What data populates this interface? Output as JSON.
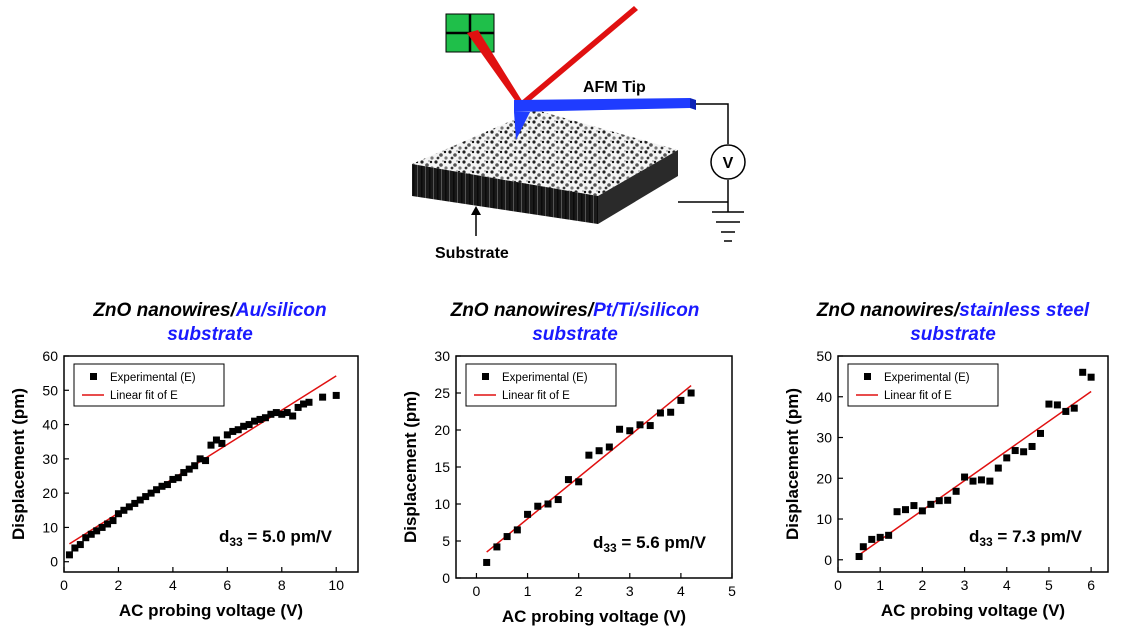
{
  "schematic": {
    "tip_label": "AFM Tip",
    "substrate_label": "Substrate",
    "meter_label": "V"
  },
  "panels": [
    {
      "title_black": "ZnO nanowires/",
      "title_blue_1": "Au/silicon",
      "title_blue_2": "substrate"
    },
    {
      "title_black": "ZnO nanowires/",
      "title_blue_1": "Pt/Ti/silicon",
      "title_blue_2": "substrate"
    },
    {
      "title_black": "ZnO nanowires/",
      "title_blue_1": "stainless steel",
      "title_blue_2": "substrate"
    }
  ],
  "colors": {
    "title_blue": "#1a1aff",
    "fit_line": "#e01010",
    "marker": "#000000",
    "tip": "#1f3cff",
    "laser": "#e01010",
    "detector": "#1fbf4a"
  },
  "chart_data": [
    {
      "type": "scatter",
      "xlabel": "AC probing voltage (V)",
      "ylabel": "Displacement (pm)",
      "xlim": [
        0,
        10.8
      ],
      "ylim": [
        -3,
        60
      ],
      "xticks": [
        "0",
        "2",
        "4",
        "6",
        "8",
        "10"
      ],
      "xtick_values": [
        0,
        2,
        4,
        6,
        8,
        10
      ],
      "yticks": [
        "0",
        "10",
        "20",
        "30",
        "40",
        "50",
        "60"
      ],
      "ytick_values": [
        0,
        10,
        20,
        30,
        40,
        50,
        60
      ],
      "legend": {
        "position": "top-left",
        "marker_label": "Experimental (E)",
        "line_label": "Linear fit of E"
      },
      "annotation": {
        "prefix": "d",
        "sub": "33",
        "suffix": " = 5.0 pm/V"
      },
      "series": [
        {
          "name": "Experimental (E)",
          "kind": "scatter",
          "x": [
            0.2,
            0.4,
            0.6,
            0.8,
            1.0,
            1.2,
            1.4,
            1.6,
            1.8,
            2.0,
            2.2,
            2.4,
            2.6,
            2.8,
            3.0,
            3.2,
            3.4,
            3.6,
            3.8,
            4.0,
            4.2,
            4.4,
            4.6,
            4.8,
            5.0,
            5.2,
            5.4,
            5.6,
            5.8,
            6.0,
            6.2,
            6.4,
            6.6,
            6.8,
            7.0,
            7.2,
            7.4,
            7.6,
            7.8,
            8.0,
            8.2,
            8.4,
            8.6,
            8.8,
            9.0,
            9.5,
            10.0
          ],
          "y": [
            2,
            4,
            5,
            7,
            8,
            9,
            10,
            11,
            12,
            14,
            15,
            16,
            17,
            18,
            19,
            20,
            21,
            22,
            22.5,
            24,
            24.5,
            26,
            27,
            28,
            30,
            29.5,
            34,
            35.5,
            34.5,
            37,
            38,
            38.5,
            39.5,
            40,
            41,
            41.5,
            42,
            43,
            43.5,
            43,
            43.5,
            42.5,
            45,
            46,
            46.5,
            48,
            48.5
          ]
        },
        {
          "name": "Linear fit of E",
          "kind": "line",
          "x": [
            0.2,
            10.0
          ],
          "y": [
            5.2,
            54.2
          ]
        }
      ]
    },
    {
      "type": "scatter",
      "xlabel": "AC probing voltage (V)",
      "ylabel": "Displacement (pm)",
      "xlim": [
        -0.4,
        5
      ],
      "ylim": [
        0,
        30
      ],
      "xticks": [
        "0",
        "1",
        "2",
        "3",
        "4",
        "5"
      ],
      "xtick_values": [
        0,
        1,
        2,
        3,
        4,
        5
      ],
      "yticks": [
        "0",
        "5",
        "10",
        "15",
        "20",
        "25",
        "30"
      ],
      "ytick_values": [
        0,
        5,
        10,
        15,
        20,
        25,
        30
      ],
      "legend": {
        "position": "top-left",
        "marker_label": "Experimental (E)",
        "line_label": "Linear fit of E"
      },
      "annotation": {
        "prefix": "d",
        "sub": "33",
        "suffix": " = 5.6 pm/V"
      },
      "series": [
        {
          "name": "Experimental (E)",
          "kind": "scatter",
          "x": [
            0.2,
            0.4,
            0.6,
            0.8,
            1.0,
            1.2,
            1.4,
            1.6,
            1.8,
            2.0,
            2.2,
            2.4,
            2.6,
            2.8,
            3.0,
            3.2,
            3.4,
            3.6,
            3.8,
            4.0,
            4.2
          ],
          "y": [
            2.1,
            4.2,
            5.6,
            6.5,
            8.6,
            9.7,
            10.0,
            10.6,
            13.3,
            13.0,
            16.6,
            17.2,
            17.7,
            20.1,
            19.9,
            20.7,
            20.6,
            22.3,
            22.4,
            24.0,
            25.0
          ]
        },
        {
          "name": "Linear fit of E",
          "kind": "line",
          "x": [
            0.2,
            4.2
          ],
          "y": [
            3.5,
            26.0
          ]
        }
      ]
    },
    {
      "type": "scatter",
      "xlabel": "AC probing voltage (V)",
      "ylabel": "Displacement (pm)",
      "xlim": [
        0,
        6.4
      ],
      "ylim": [
        -3,
        50
      ],
      "xticks": [
        "0",
        "1",
        "2",
        "3",
        "4",
        "5",
        "6"
      ],
      "xtick_values": [
        0,
        1,
        2,
        3,
        4,
        5,
        6
      ],
      "yticks": [
        "0",
        "10",
        "20",
        "30",
        "40",
        "50"
      ],
      "ytick_values": [
        0,
        10,
        20,
        30,
        40,
        50
      ],
      "legend": {
        "position": "top-left",
        "marker_label": "Experimental (E)",
        "line_label": "Linear fit of E"
      },
      "annotation": {
        "prefix": "d",
        "sub": "33",
        "suffix": " = 7.3 pm/V"
      },
      "series": [
        {
          "name": "Experimental (E)",
          "kind": "scatter",
          "x": [
            0.5,
            0.6,
            0.8,
            1.0,
            1.2,
            1.4,
            1.6,
            1.8,
            2.0,
            2.2,
            2.4,
            2.6,
            2.8,
            3.0,
            3.2,
            3.4,
            3.6,
            3.8,
            4.0,
            4.2,
            4.4,
            4.6,
            4.8,
            5.0,
            5.2,
            5.4,
            5.6,
            5.8,
            6.0
          ],
          "y": [
            0.8,
            3.2,
            5.0,
            5.5,
            6.0,
            11.8,
            12.3,
            13.3,
            12.0,
            13.6,
            14.5,
            14.6,
            16.8,
            20.3,
            19.3,
            19.6,
            19.3,
            22.5,
            25.0,
            26.8,
            26.5,
            27.8,
            31.0,
            38.2,
            38.0,
            36.4,
            37.2,
            46.0,
            44.8
          ]
        },
        {
          "name": "Linear fit of E",
          "kind": "line",
          "x": [
            0.5,
            6.0
          ],
          "y": [
            1.2,
            41.3
          ]
        }
      ]
    }
  ]
}
